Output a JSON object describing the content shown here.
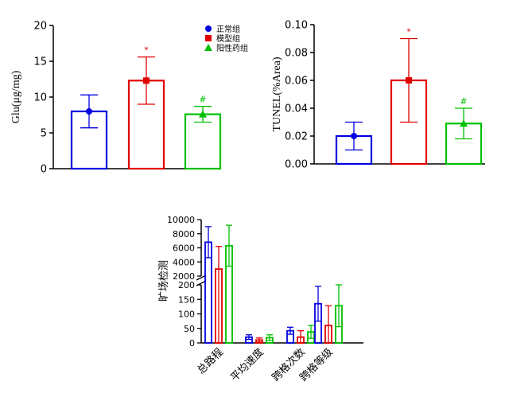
{
  "colors": {
    "normal": "#0000e0",
    "model": "#e00000",
    "positive": "#00c000",
    "axis": "#000000"
  },
  "legend": [
    {
      "label": "正常组",
      "color": "#0000e0",
      "marker": "circle"
    },
    {
      "label": "模型组",
      "color": "#e00000",
      "marker": "square"
    },
    {
      "label": "阳性药组",
      "color": "#00c000",
      "marker": "triangle"
    }
  ],
  "chart_data": [
    {
      "type": "bar",
      "ylabel": "Glu(μg/mg)",
      "ylim": [
        0,
        20
      ],
      "yticks": [
        "0",
        "5",
        "10",
        "15",
        "20"
      ],
      "series": [
        {
          "name": "正常组",
          "value": 8.0,
          "err": 2.3,
          "marker": "circle",
          "annotation": ""
        },
        {
          "name": "模型组",
          "value": 12.3,
          "err": 3.3,
          "marker": "square",
          "annotation": "*"
        },
        {
          "name": "阳性药组",
          "value": 7.6,
          "err": 1.1,
          "marker": "triangle",
          "annotation": "#"
        }
      ]
    },
    {
      "type": "bar",
      "ylabel": "TUNEL(%Area)",
      "ylim": [
        0,
        0.1
      ],
      "yticks": [
        "0.00",
        "0.02",
        "0.04",
        "0.06",
        "0.08",
        "0.10"
      ],
      "series": [
        {
          "name": "正常组",
          "value": 0.02,
          "err": 0.01,
          "marker": "circle",
          "annotation": ""
        },
        {
          "name": "模型组",
          "value": 0.06,
          "err": 0.03,
          "marker": "square",
          "annotation": "*"
        },
        {
          "name": "阳性药组",
          "value": 0.029,
          "err": 0.011,
          "marker": "triangle",
          "annotation": "#"
        }
      ]
    },
    {
      "type": "bar",
      "ylabel": "旷场检测",
      "axis_break": true,
      "ylim_lower": [
        0,
        200
      ],
      "ylim_upper": [
        2000,
        10000
      ],
      "yticks_lower": [
        "0",
        "50",
        "100",
        "150",
        "200"
      ],
      "yticks_upper": [
        "2000",
        "4000",
        "6000",
        "8000",
        "10000"
      ],
      "categories": [
        "总路程",
        "平均速度",
        "跨格次数",
        "跨格等级"
      ],
      "series": [
        {
          "name": "正常组",
          "values": [
            6800,
            20,
            42,
            135
          ],
          "errs": [
            2200,
            8,
            12,
            60
          ]
        },
        {
          "name": "模型组",
          "values": [
            3000,
            10,
            20,
            60
          ],
          "errs": [
            3200,
            7,
            22,
            68
          ]
        },
        {
          "name": "阳性药组",
          "values": [
            6300,
            18,
            38,
            128
          ],
          "errs": [
            2900,
            10,
            22,
            72
          ]
        }
      ]
    }
  ]
}
